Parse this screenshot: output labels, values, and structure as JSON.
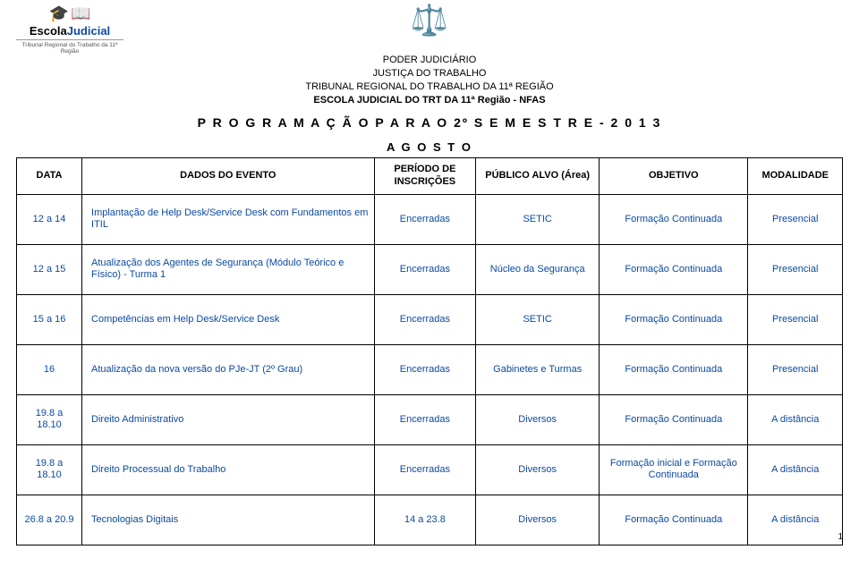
{
  "logo_left": {
    "brand_part1": "Escola",
    "brand_part2": "Judicial",
    "subtitle": "Tribunal Regional do Trabalho da 11ª Região"
  },
  "header": {
    "line1": "PODER JUDICIÁRIO",
    "line2": "JUSTIÇA DO TRABALHO",
    "line3": "TRIBUNAL REGIONAL DO TRABALHO DA 11ª REGIÃO",
    "line4": "ESCOLA JUDICIAL DO TRT DA 11ª Região - NFAS"
  },
  "title": "P R O G R A M A Ç Ã O  P A R A  O  2º  S E M E S T R E  -  2 0 1 3",
  "month": "A G O S T O",
  "columns": {
    "c1": "DATA",
    "c2": "DADOS DO EVENTO",
    "c3": "PERÍODO DE INSCRIÇÕES",
    "c4": "PÚBLICO ALVO (Área)",
    "c5": "OBJETIVO",
    "c6": "MODALIDADE"
  },
  "rows": [
    {
      "data": "12 a 14",
      "evento": "Implantação de Help Desk/Service Desk com Fundamentos em ITIL",
      "periodo": "Encerradas",
      "publico": "SETIC",
      "objetivo": "Formação Continuada",
      "modalidade": "Presencial"
    },
    {
      "data": "12 a 15",
      "evento": "Atualização dos Agentes de Segurança (Módulo Teórico e Físico) - Turma 1",
      "periodo": "Encerradas",
      "publico": "Núcleo da Segurança",
      "objetivo": "Formação Continuada",
      "modalidade": "Presencial"
    },
    {
      "data": "15 a 16",
      "evento": "Competências em Help Desk/Service Desk",
      "periodo": "Encerradas",
      "publico": "SETIC",
      "objetivo": "Formação Continuada",
      "modalidade": "Presencial"
    },
    {
      "data": "16",
      "evento": "Atualização da nova versão do PJe-JT (2º Grau)",
      "periodo": "Encerradas",
      "publico": "Gabinetes e Turmas",
      "objetivo": "Formação Continuada",
      "modalidade": "Presencial"
    },
    {
      "data": "19.8 a 18.10",
      "evento": "Direito Administrativo",
      "periodo": "Encerradas",
      "publico": "Diversos",
      "objetivo": "Formação Continuada",
      "modalidade": "A distância"
    },
    {
      "data": "19.8 a 18.10",
      "evento": "Direito Processual do Trabalho",
      "periodo": "Encerradas",
      "publico": "Diversos",
      "objetivo": "Formação inicial e Formação Continuada",
      "modalidade": "A distância"
    },
    {
      "data": "26.8 a 20.9",
      "evento": "Tecnologias Digitais",
      "periodo": "14 a 23.8",
      "publico": "Diversos",
      "objetivo": "Formação Continuada",
      "modalidade": "A distância"
    }
  ],
  "page_number": "1",
  "colors": {
    "row_text": "#0b4aa2",
    "border": "#000000",
    "background": "#ffffff"
  }
}
